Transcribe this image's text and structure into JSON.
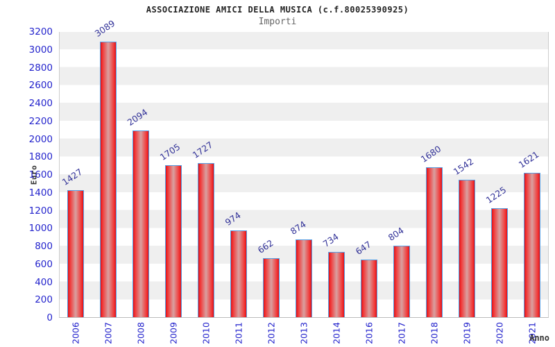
{
  "header": {
    "title": "ASSOCIAZIONE AMICI DELLA MUSICA (c.f.80025390925)",
    "subtitle": "Importi"
  },
  "chart_data": {
    "type": "bar",
    "title": "ASSOCIAZIONE AMICI DELLA MUSICA (c.f.80025390925)",
    "subtitle": "Importi",
    "xlabel": "Anno",
    "ylabel": "Euro",
    "categories": [
      "2006",
      "2007",
      "2008",
      "2009",
      "2010",
      "2011",
      "2012",
      "2013",
      "2014",
      "2016",
      "2017",
      "2018",
      "2019",
      "2020",
      "2021"
    ],
    "values": [
      1427,
      3089,
      2094,
      1705,
      1727,
      974,
      662,
      874,
      734,
      647,
      804,
      1680,
      1542,
      1225,
      1621
    ],
    "ylim": [
      0,
      3200
    ],
    "ytick_step": 200,
    "grid": "alternating horizontal bands every 200",
    "legend": "none",
    "colors": {
      "bar_edge": "#dd1016",
      "bar_bright": "#f23535",
      "bar_mid": "#d9a0a0",
      "bar_border": "#55a0e6",
      "band_gray": "#efefef",
      "plot_border": "#cccccc",
      "axis_tick_text": "#2222cc",
      "value_label_text": "#333399",
      "title_text": "#222222",
      "subtitle_text": "#666666",
      "axis_title_text": "#333333",
      "background": "#ffffff"
    }
  }
}
